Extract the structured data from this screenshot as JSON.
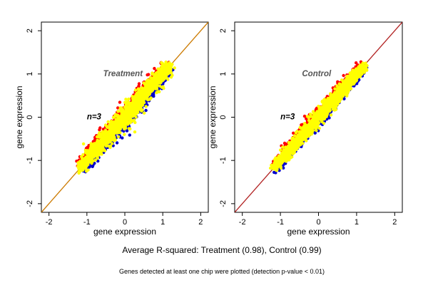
{
  "colors": {
    "identity_line": "#cc7a00",
    "identity_line_right": "#b22222",
    "points_main": "#ffff00",
    "points_up": "#ff0000",
    "points_down": "#0000cc",
    "frame": "#000000"
  },
  "summary_text": "Average R-squared: Treatment (0.98), Control (0.99)",
  "footnote_text": "Genes detected at least one chip were plotted (detection p-value < 0.01)",
  "chart_data": [
    {
      "type": "scatter",
      "title": "Treatment",
      "annotation": "n=3",
      "xlabel": "gene expression",
      "ylabel": "gene expression",
      "xlim": [
        -2.2,
        2.2
      ],
      "ylim": [
        -2.2,
        2.2
      ],
      "xticks": [
        "-2",
        "-1",
        "0",
        "1",
        "2"
      ],
      "yticks": [
        "-2",
        "-1",
        "0",
        "1",
        "2"
      ],
      "reference_line": "y = x",
      "grid": false,
      "cloud": {
        "x_range": [
          -1.15,
          1.15
        ],
        "y_range": [
          -1.15,
          1.15
        ],
        "correlation": 0.98
      },
      "series": [
        {
          "color": "yellow"
        },
        {
          "color": "red"
        },
        {
          "color": "blue"
        }
      ]
    },
    {
      "type": "scatter",
      "title": "Control",
      "annotation": "n=3",
      "xlabel": "gene expression",
      "ylabel": "gene expression",
      "xlim": [
        -2.2,
        2.2
      ],
      "ylim": [
        -2.2,
        2.2
      ],
      "xticks": [
        "-2",
        "-1",
        "0",
        "1",
        "2"
      ],
      "yticks": [
        "-2",
        "-1",
        "0",
        "1",
        "2"
      ],
      "reference_line": "y = x",
      "grid": false,
      "cloud": {
        "x_range": [
          -1.15,
          1.15
        ],
        "y_range": [
          -1.15,
          1.15
        ],
        "correlation": 0.99
      },
      "series": [
        {
          "color": "yellow"
        },
        {
          "color": "red"
        },
        {
          "color": "blue"
        }
      ]
    }
  ]
}
